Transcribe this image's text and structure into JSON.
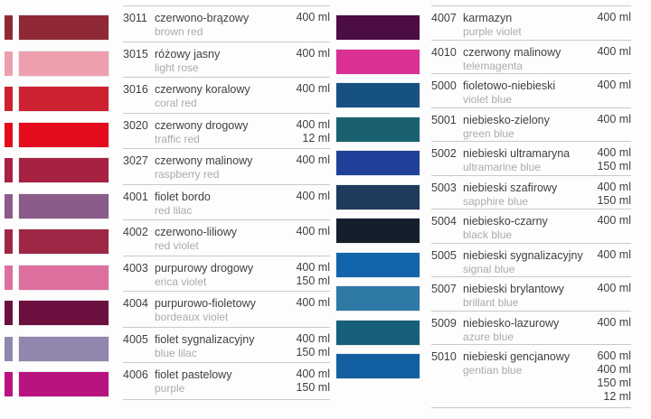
{
  "page": {
    "background": "#fdfdfe",
    "divider_color": "#c9c9c9",
    "text_color": "#3f3f42",
    "muted_text_color": "#ababaf"
  },
  "catalog": {
    "columns": [
      {
        "side": "left",
        "has_spine": true,
        "rows": [
          {
            "code": "3011",
            "name_pl": "czerwono-brązowy",
            "name_en": "brown red",
            "volumes": [
              "400 ml"
            ],
            "color": "#8f2936"
          },
          {
            "code": "3015",
            "name_pl": "różowy jasny",
            "name_en": "light rose",
            "volumes": [
              "400 ml"
            ],
            "color": "#ee9fae"
          },
          {
            "code": "3016",
            "name_pl": "czerwony koralowy",
            "name_en": "coral red",
            "volumes": [
              "400 ml"
            ],
            "color": "#ce2130"
          },
          {
            "code": "3020",
            "name_pl": "czerwony drogowy",
            "name_en": "traffic red",
            "volumes": [
              "400 ml",
              "12 ml"
            ],
            "color": "#e30b1c"
          },
          {
            "code": "3027",
            "name_pl": "czerwony malinowy",
            "name_en": "raspberry red",
            "volumes": [
              "400 ml"
            ],
            "color": "#a62142"
          },
          {
            "code": "4001",
            "name_pl": "fiolet bordo",
            "name_en": "red lilac",
            "volumes": [
              "400 ml"
            ],
            "color": "#8b5c89"
          },
          {
            "code": "4002",
            "name_pl": "czerwono-liliowy",
            "name_en": "red violet",
            "volumes": [
              "400 ml"
            ],
            "color": "#9e2746"
          },
          {
            "code": "4003",
            "name_pl": "purpurowy drogowy",
            "name_en": "erica violet",
            "volumes": [
              "400 ml",
              "150 ml"
            ],
            "color": "#dd6f9e"
          },
          {
            "code": "4004",
            "name_pl": "purpurowo-fioletowy",
            "name_en": "bordeaux violet",
            "volumes": [
              "400 ml"
            ],
            "color": "#6c1040"
          },
          {
            "code": "4005",
            "name_pl": "fiolet sygnalizacyjny",
            "name_en": "blue lilac",
            "volumes": [
              "400 ml",
              "150 ml"
            ],
            "color": "#9186ae"
          },
          {
            "code": "4006",
            "name_pl": "fiolet pastelowy",
            "name_en": "purple",
            "volumes": [
              "400 ml",
              "150 ml"
            ],
            "color": "#b9137f"
          }
        ]
      },
      {
        "side": "right",
        "has_spine": false,
        "rows": [
          {
            "code": "4007",
            "name_pl": "karmazyn",
            "name_en": "purple violet",
            "volumes": [
              "400 ml"
            ],
            "color": "#4c0d44"
          },
          {
            "code": "4010",
            "name_pl": "czerwony malinowy",
            "name_en": "telemagenta",
            "volumes": [
              "400 ml"
            ],
            "color": "#da3094"
          },
          {
            "code": "5000",
            "name_pl": "fioletowo-niebieski",
            "name_en": "violet blue",
            "volumes": [
              "400 ml"
            ],
            "color": "#175181"
          },
          {
            "code": "5001",
            "name_pl": "niebiesko-zielony",
            "name_en": "green blue",
            "volumes": [
              "400 ml"
            ],
            "color": "#1a6170"
          },
          {
            "code": "5002",
            "name_pl": "niebieski ultramaryna",
            "name_en": "ultramarine blue",
            "volumes": [
              "400 ml",
              "150 ml"
            ],
            "color": "#20419a"
          },
          {
            "code": "5003",
            "name_pl": "niebieski szafirowy",
            "name_en": "sapphire blue",
            "volumes": [
              "400 ml",
              "150 ml"
            ],
            "color": "#1e3a5c"
          },
          {
            "code": "5004",
            "name_pl": "niebiesko-czarny",
            "name_en": "black blue",
            "volumes": [
              "400 ml"
            ],
            "color": "#141f2b"
          },
          {
            "code": "5005",
            "name_pl": "niebieski sygnalizacyjny",
            "name_en": "signal blue",
            "volumes": [
              "400 ml"
            ],
            "color": "#1264ab"
          },
          {
            "code": "5007",
            "name_pl": "niebieski brylantowy",
            "name_en": "brillant blue",
            "volumes": [
              "400 ml"
            ],
            "color": "#2e7aa6"
          },
          {
            "code": "5009",
            "name_pl": "niebiesko-lazurowy",
            "name_en": "azure blue",
            "volumes": [
              "400 ml"
            ],
            "color": "#17607a"
          },
          {
            "code": "5010",
            "name_pl": "niebieski gencjanowy",
            "name_en": "gentian blue",
            "volumes": [
              "600 ml",
              "400 ml",
              "150 ml",
              "12 ml"
            ],
            "color": "#1260a2"
          }
        ]
      }
    ]
  }
}
